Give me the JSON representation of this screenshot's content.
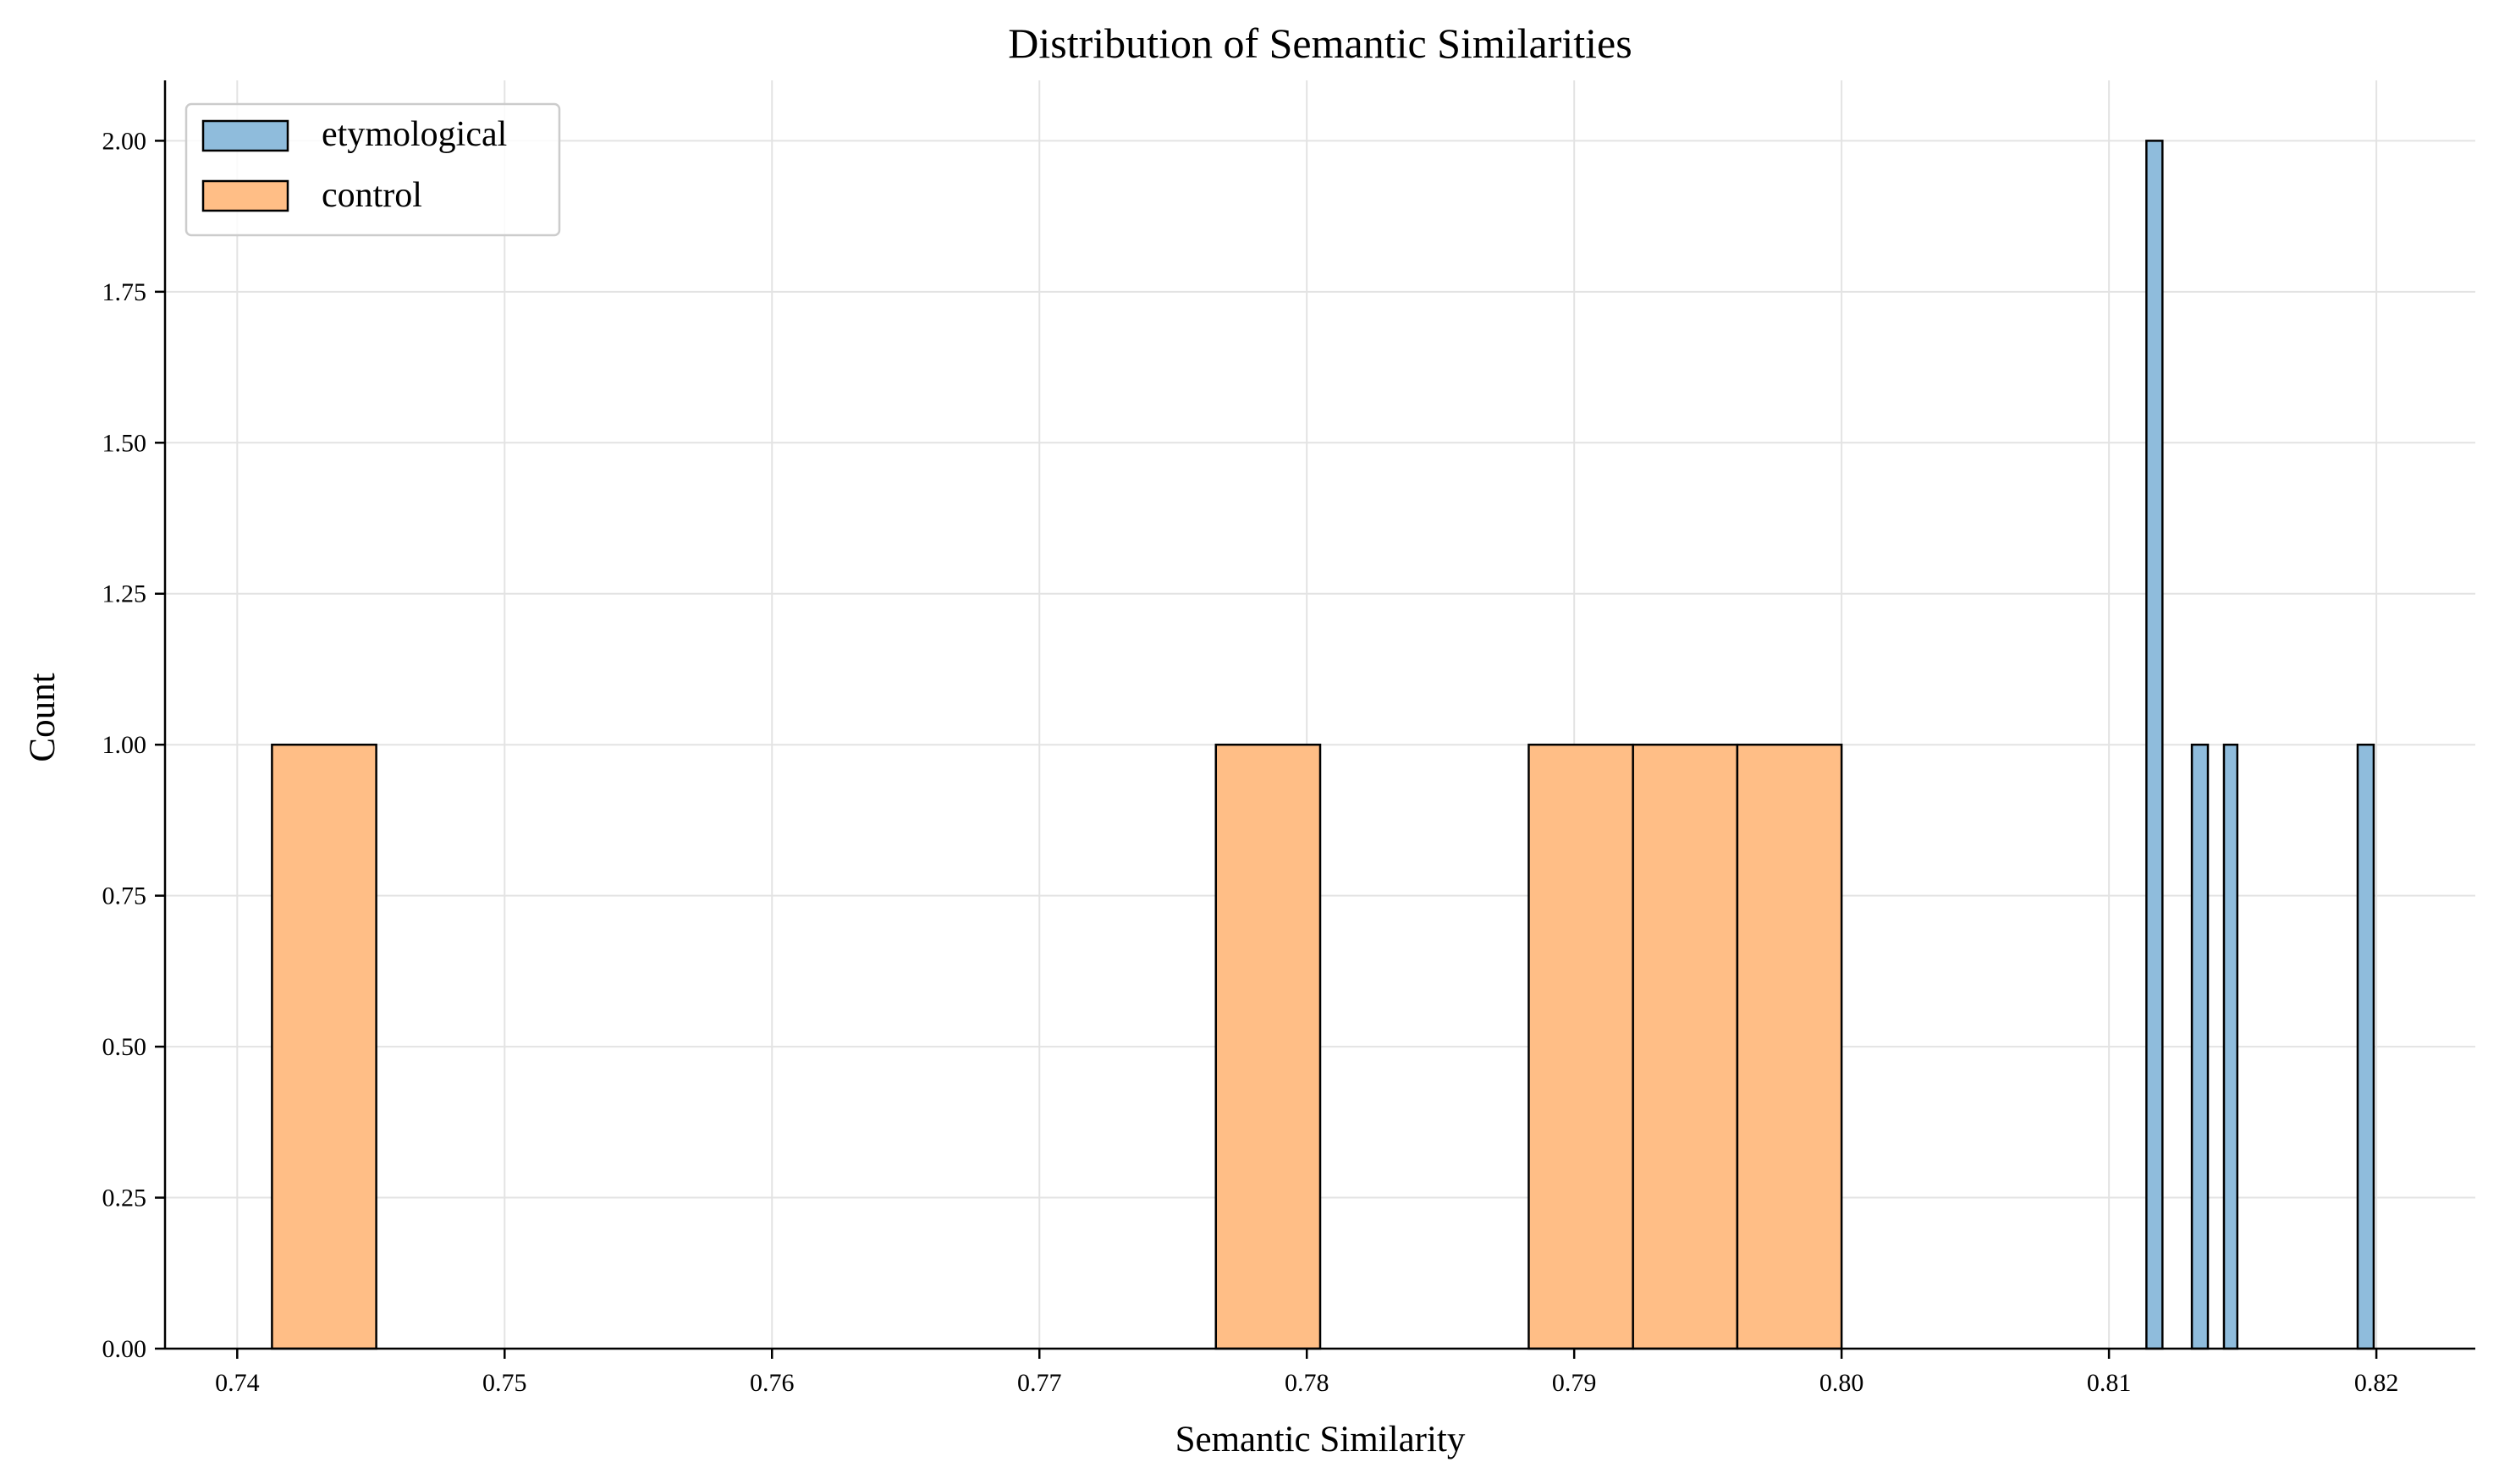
{
  "chart_data": {
    "type": "bar",
    "title": "Distribution of Semantic Similarities",
    "xlabel": "Semantic Similarity",
    "ylabel": "Count",
    "xlim": [
      0.7373,
      0.8237
    ],
    "ylim": [
      0,
      2.1
    ],
    "xticks": [
      0.74,
      0.75,
      0.76,
      0.77,
      0.78,
      0.79,
      0.8,
      0.81,
      0.82
    ],
    "xtick_labels": [
      "0.74",
      "0.75",
      "0.76",
      "0.77",
      "0.78",
      "0.79",
      "0.80",
      "0.81",
      "0.82"
    ],
    "yticks": [
      0,
      0.25,
      0.5,
      0.75,
      1.0,
      1.25,
      1.5,
      1.75,
      2.0
    ],
    "ytick_labels": [
      "0.00",
      "0.25",
      "0.50",
      "0.75",
      "1.00",
      "1.25",
      "1.50",
      "1.75",
      "2.00"
    ],
    "grid": true,
    "legend_position": "top-left",
    "series": [
      {
        "name": "etymological",
        "color": "#8fbcdc",
        "bins": [
          {
            "x0": 0.8114,
            "x1": 0.812,
            "count": 2
          },
          {
            "x0": 0.8131,
            "x1": 0.8137,
            "count": 1
          },
          {
            "x0": 0.8143,
            "x1": 0.8148,
            "count": 1
          },
          {
            "x0": 0.8193,
            "x1": 0.8199,
            "count": 1
          }
        ]
      },
      {
        "name": "control",
        "color": "#ffbe86",
        "bins": [
          {
            "x0": 0.7413,
            "x1": 0.7452,
            "count": 1
          },
          {
            "x0": 0.7766,
            "x1": 0.7805,
            "count": 1
          },
          {
            "x0": 0.7883,
            "x1": 0.7922,
            "count": 1
          },
          {
            "x0": 0.7922,
            "x1": 0.7961,
            "count": 1
          },
          {
            "x0": 0.7961,
            "x1": 0.8,
            "count": 1
          }
        ]
      }
    ]
  }
}
